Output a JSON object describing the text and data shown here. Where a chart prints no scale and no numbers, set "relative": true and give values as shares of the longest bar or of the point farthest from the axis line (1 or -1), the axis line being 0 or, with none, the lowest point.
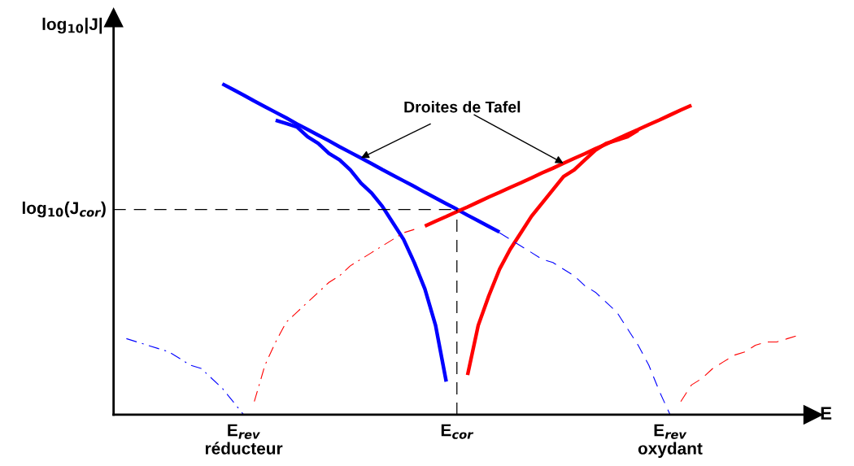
{
  "chart_data": {
    "type": "line",
    "relative": true,
    "xlabel": "E",
    "ylabel": "log$_{10}$|J|",
    "categories": [
      null,
      null,
      null,
      null,
      null,
      null,
      null,
      null,
      null,
      null,
      null,
      null,
      "E$_{rev}$\nréducteur",
      null,
      null,
      null,
      null,
      null,
      null,
      null,
      null,
      null,
      null,
      null,
      null,
      null,
      null,
      null,
      null,
      null,
      null,
      null,
      "E$_{cor}$",
      null,
      null,
      null,
      null,
      null,
      null,
      null,
      null,
      null,
      null,
      null,
      null,
      null,
      null,
      null,
      null,
      null,
      null,
      null,
      "E$_{rev}$\noxydant",
      null,
      null,
      null,
      null,
      null,
      null,
      null,
      null,
      null,
      null,
      null,
      null
    ],
    "series": [
      {
        "color": "#0000ff",
        "line_style": "solid",
        "values": [
          null,
          null,
          null,
          null,
          null,
          null,
          null,
          null,
          null,
          null,
          1.0,
          0.983,
          0.966,
          0.948,
          0.931,
          0.914,
          0.897,
          0.879,
          0.862,
          0.845,
          0.828,
          0.81,
          0.793,
          0.776,
          0.759,
          0.741,
          0.724,
          0.707,
          0.69,
          0.672,
          0.655,
          0.638,
          0.621,
          0.603,
          0.586,
          0.569,
          0.552,
          null,
          null,
          null,
          null,
          null,
          null,
          null,
          null,
          null,
          null,
          null,
          null,
          null,
          null,
          null,
          null,
          null,
          null,
          null,
          null,
          null,
          null,
          null,
          null,
          null,
          null,
          null,
          null
        ]
      },
      {
        "color": "#ff0000",
        "line_style": "solid",
        "values": [
          null,
          null,
          null,
          null,
          null,
          null,
          null,
          null,
          null,
          null,
          null,
          null,
          null,
          null,
          null,
          null,
          null,
          null,
          null,
          null,
          null,
          null,
          null,
          null,
          null,
          null,
          null,
          null,
          null,
          0.57,
          0.585,
          0.599,
          0.614,
          0.628,
          0.643,
          0.658,
          0.672,
          0.687,
          0.701,
          0.716,
          0.731,
          0.745,
          0.76,
          0.775,
          0.789,
          0.804,
          0.818,
          0.833,
          0.848,
          0.862,
          0.877,
          0.891,
          0.906,
          0.921,
          0.935,
          null,
          null,
          null,
          null,
          null,
          null,
          null,
          null,
          null,
          null
        ]
      },
      {
        "color": "#0000ff",
        "line_style": "solid",
        "values": [
          null,
          null,
          null,
          null,
          null,
          null,
          null,
          null,
          null,
          null,
          null,
          null,
          null,
          null,
          null,
          0.89,
          0.88,
          0.87,
          0.84,
          0.82,
          0.79,
          0.77,
          0.74,
          0.7,
          0.67,
          0.63,
          0.58,
          0.53,
          0.46,
          0.38,
          0.27,
          0.1,
          null,
          null,
          null,
          null,
          null,
          null,
          null,
          null,
          null,
          null,
          null,
          null,
          null,
          null,
          null,
          null,
          null,
          null,
          null,
          null,
          null,
          null,
          null,
          null,
          null,
          null,
          null,
          null,
          null,
          null,
          null,
          null,
          null
        ]
      },
      {
        "color": "#ff0000",
        "line_style": "solid",
        "values": [
          null,
          null,
          null,
          null,
          null,
          null,
          null,
          null,
          null,
          null,
          null,
          null,
          null,
          null,
          null,
          null,
          null,
          null,
          null,
          null,
          null,
          null,
          null,
          null,
          null,
          null,
          null,
          null,
          null,
          null,
          null,
          null,
          null,
          0.12,
          0.27,
          0.36,
          0.44,
          0.5,
          0.55,
          0.6,
          0.64,
          0.68,
          0.72,
          0.74,
          0.77,
          0.8,
          0.82,
          0.83,
          0.84,
          0.86,
          null,
          null,
          null,
          null,
          null,
          null,
          null,
          null,
          null,
          null,
          null,
          null,
          null,
          null,
          null
        ]
      },
      {
        "color": "#0000ff",
        "line_style": "dashed",
        "values": [
          null,
          null,
          null,
          null,
          null,
          null,
          null,
          null,
          null,
          null,
          null,
          null,
          null,
          null,
          null,
          null,
          null,
          null,
          null,
          null,
          null,
          null,
          null,
          null,
          null,
          null,
          null,
          null,
          null,
          null,
          null,
          null,
          null,
          null,
          null,
          null,
          0.55,
          0.53,
          0.51,
          0.49,
          0.47,
          0.46,
          0.44,
          0.42,
          0.39,
          0.37,
          0.34,
          0.31,
          0.26,
          0.21,
          0.15,
          0.07,
          0,
          null,
          null,
          null,
          null,
          null,
          null,
          null,
          null,
          null,
          null,
          null,
          null
        ]
      },
      {
        "color": "#ff0000",
        "line_style": "dashed",
        "values": [
          null,
          null,
          null,
          null,
          null,
          null,
          null,
          null,
          null,
          null,
          null,
          null,
          null,
          null,
          null,
          null,
          null,
          null,
          null,
          null,
          null,
          null,
          null,
          null,
          null,
          null,
          null,
          null,
          null,
          null,
          null,
          null,
          null,
          null,
          null,
          null,
          null,
          null,
          null,
          null,
          null,
          null,
          null,
          null,
          null,
          null,
          null,
          null,
          null,
          null,
          null,
          null,
          null,
          0.04,
          0.09,
          0.11,
          0.14,
          0.16,
          0.18,
          0.19,
          0.21,
          0.22,
          0.22,
          0.23,
          0.24
        ]
      },
      {
        "color": "#0000ff",
        "line_style": "dashdot",
        "values": [
          null,
          0.23,
          0.22,
          0.21,
          0.2,
          0.19,
          0.17,
          0.15,
          0.14,
          0.11,
          0.08,
          0.04,
          0,
          null,
          null,
          null,
          null,
          null,
          null,
          null,
          null,
          null,
          null,
          null,
          null,
          null,
          null,
          null,
          null,
          null,
          null,
          null,
          null,
          null,
          null,
          null,
          null,
          null,
          null,
          null,
          null,
          null,
          null,
          null,
          null,
          null,
          null,
          null,
          null,
          null,
          null,
          null,
          null,
          null,
          null,
          null,
          null,
          null,
          null,
          null,
          null,
          null,
          null,
          null,
          null
        ]
      },
      {
        "color": "#ff0000",
        "line_style": "dashdot",
        "values": [
          null,
          null,
          null,
          null,
          null,
          null,
          null,
          null,
          null,
          null,
          null,
          null,
          null,
          0.04,
          0.15,
          0.22,
          0.28,
          0.31,
          0.34,
          0.37,
          0.4,
          0.42,
          0.45,
          0.47,
          0.49,
          0.51,
          0.53,
          0.55,
          0.56,
          null,
          null,
          null,
          null,
          null,
          null,
          null,
          null,
          null,
          null,
          null,
          null,
          null,
          null,
          null,
          null,
          null,
          null,
          null,
          null,
          null,
          null,
          null,
          null,
          null,
          null,
          null,
          null,
          null,
          null,
          null,
          null,
          null,
          null,
          null,
          null
        ]
      }
    ],
    "ref_lines": [
      {
        "axis": "y",
        "value": 0.62,
        "label": "log$_{10}$(J$_{cor}$)",
        "color": "#000000",
        "line_style": "dashed"
      },
      {
        "axis": "x",
        "value": "E$_{cor}$",
        "color": "#000000",
        "line_style": "dashed"
      }
    ],
    "annotations": [
      "Droites de Tafel"
    ]
  }
}
